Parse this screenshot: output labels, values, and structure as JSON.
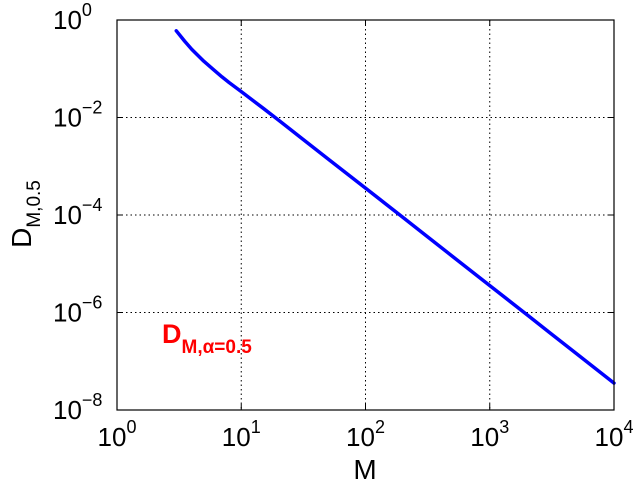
{
  "chart_data": {
    "type": "line",
    "x_scale": "log",
    "y_scale": "log",
    "xlim": [
      1,
      10000
    ],
    "ylim": [
      1e-08,
      1
    ],
    "grid": true,
    "xlabel": "M",
    "ylabel_base": "D",
    "ylabel_sub": "M,0.5",
    "x_ticks": [
      {
        "value": 1,
        "base": "10",
        "exp": "0"
      },
      {
        "value": 10,
        "base": "10",
        "exp": "1"
      },
      {
        "value": 100,
        "base": "10",
        "exp": "2"
      },
      {
        "value": 1000,
        "base": "10",
        "exp": "3"
      },
      {
        "value": 10000,
        "base": "10",
        "exp": "4"
      }
    ],
    "y_ticks": [
      {
        "value": 1,
        "base": "10",
        "exp": "0"
      },
      {
        "value": 0.01,
        "base": "10",
        "exp": "−2"
      },
      {
        "value": 0.0001,
        "base": "10",
        "exp": "−4"
      },
      {
        "value": 1e-06,
        "base": "10",
        "exp": "−6"
      },
      {
        "value": 1e-08,
        "base": "10",
        "exp": "−8"
      }
    ],
    "series": [
      {
        "color": "#0000ff",
        "x": [
          3,
          3.5,
          4,
          5,
          6,
          7,
          8,
          10,
          15,
          20,
          30,
          50,
          100,
          200,
          300,
          500,
          1000,
          2000,
          3000,
          5000,
          10000
        ],
        "y": [
          0.6,
          0.37,
          0.25,
          0.143,
          0.095,
          0.068,
          0.052,
          0.034,
          0.0155,
          0.0088,
          0.0039,
          0.00141,
          0.000356,
          8.91e-05,
          3.96e-05,
          1.43e-05,
          3.56e-06,
          8.91e-07,
          3.96e-07,
          1.43e-07,
          3.56e-08
        ]
      }
    ],
    "annotation": {
      "base": "D",
      "sub": "M,α=0.5",
      "color": "#ff0000"
    }
  }
}
